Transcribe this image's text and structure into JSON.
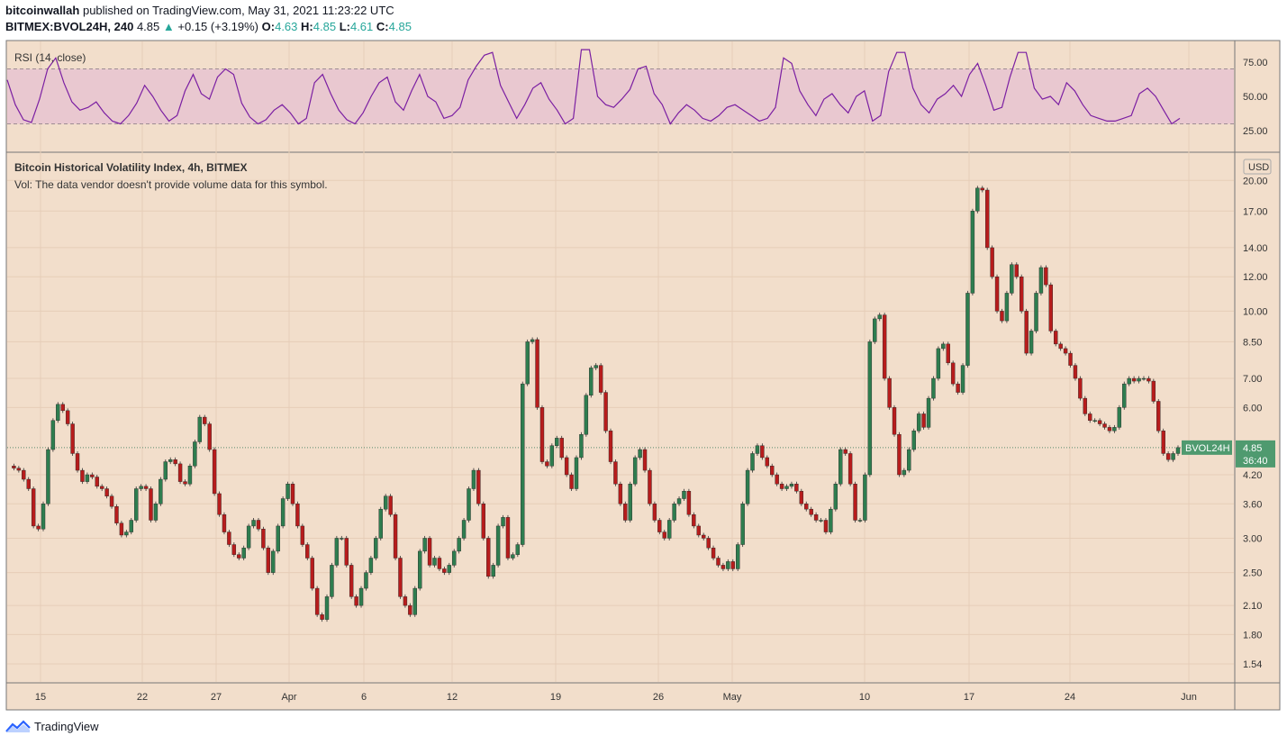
{
  "header": {
    "publisher": "bitcoinwallah",
    "published_text": "published on TradingView.com, May 31, 2021 11:23:22 UTC",
    "symbol": "BITMEX:BVOL24H, 240",
    "last": "4.85",
    "change_arrow": "▲",
    "change": "+0.15 (+3.19%)",
    "o_label": "O:",
    "o_value": "4.63",
    "h_label": "H:",
    "h_value": "4.85",
    "l_label": "L:",
    "l_value": "4.61",
    "c_label": "C:",
    "c_value": "4.85"
  },
  "footer": {
    "brand": "TradingView"
  },
  "colors": {
    "background": "#f2decb",
    "rsi_band": "#e9c8d0",
    "rsi_line": "#7b1fa2",
    "up_candle": "#2e7d4f",
    "down_candle": "#b71c1c",
    "price_label": "#4f9a6f"
  },
  "chart_data": [
    {
      "type": "line",
      "title": "RSI (14, close)",
      "ylim": [
        10,
        90
      ],
      "yticks": [
        "75.00",
        "50.00",
        "25.00"
      ],
      "band": [
        30,
        70
      ],
      "series": [
        {
          "values": [
            62,
            44,
            33,
            31,
            48,
            70,
            78,
            60,
            46,
            40,
            42,
            46,
            38,
            32,
            30,
            36,
            45,
            58,
            50,
            40,
            32,
            36,
            54,
            66,
            52,
            48,
            64,
            70,
            66,
            45,
            35,
            30,
            33,
            40,
            44,
            38,
            30,
            34,
            60,
            66,
            52,
            40,
            33,
            30,
            38,
            50,
            60,
            64,
            46,
            40,
            54,
            66,
            50,
            46,
            34,
            36,
            42,
            62,
            72,
            80,
            82,
            58,
            46,
            34,
            44,
            56,
            60,
            48,
            40,
            30,
            34,
            84,
            84,
            50,
            44,
            42,
            48,
            55,
            70,
            72,
            52,
            44,
            30,
            38,
            44,
            40,
            34,
            32,
            36,
            42,
            44,
            40,
            36,
            32,
            34,
            42,
            78,
            74,
            54,
            44,
            36,
            48,
            52,
            44,
            38,
            50,
            54,
            32,
            36,
            68,
            82,
            82,
            56,
            44,
            38,
            48,
            52,
            58,
            50,
            66,
            74,
            58,
            40,
            42,
            64,
            82,
            82,
            56,
            48,
            50,
            44,
            60,
            54,
            44,
            36,
            34,
            32,
            32,
            34,
            36,
            52,
            56,
            50,
            40,
            30,
            34
          ]
        }
      ]
    },
    {
      "type": "candlestick",
      "title": "Bitcoin Historical Volatility Index, 4h, BITMEX",
      "subtitle": "Vol: The data vendor doesn't provide volume data for this symbol.",
      "currency": "USD",
      "y_scale": "log",
      "ylim": [
        1.4,
        23
      ],
      "yticks": [
        "20.00",
        "17.00",
        "14.00",
        "12.00",
        "10.00",
        "8.50",
        "7.00",
        "6.00",
        "4.20",
        "3.60",
        "3.00",
        "2.50",
        "2.10",
        "1.80",
        "1.54"
      ],
      "x_ticks": [
        "15",
        "22",
        "27",
        "Apr",
        "6",
        "12",
        "19",
        "26",
        "May",
        "10",
        "17",
        "24",
        "Jun"
      ],
      "last_label": "BVOL24H",
      "last_value": "4.85",
      "countdown": "36:40",
      "series": [
        {
          "name": "BVOL24H",
          "values": [
            4.4,
            4.35,
            4.3,
            4.1,
            3.9,
            3.2,
            3.15,
            3.6,
            4.8,
            5.6,
            6.1,
            5.9,
            5.5,
            4.7,
            4.3,
            4.05,
            4.2,
            4.15,
            3.95,
            3.9,
            3.75,
            3.55,
            3.25,
            3.05,
            3.1,
            3.3,
            3.9,
            3.95,
            3.9,
            3.3,
            3.6,
            4.1,
            4.5,
            4.55,
            4.45,
            4.05,
            4.0,
            4.4,
            5.0,
            5.7,
            5.5,
            4.8,
            3.8,
            3.4,
            3.1,
            2.9,
            2.75,
            2.7,
            2.85,
            3.2,
            3.3,
            3.15,
            2.85,
            2.5,
            2.8,
            3.2,
            3.7,
            4.0,
            3.6,
            3.2,
            2.9,
            2.7,
            2.3,
            2.0,
            1.95,
            2.2,
            2.6,
            3.0,
            3.0,
            2.6,
            2.2,
            2.1,
            2.3,
            2.5,
            2.7,
            3.0,
            3.5,
            3.75,
            3.4,
            2.7,
            2.2,
            2.1,
            2.0,
            2.3,
            2.8,
            3.0,
            2.6,
            2.7,
            2.55,
            2.5,
            2.6,
            2.8,
            3.0,
            3.3,
            3.9,
            4.3,
            3.6,
            3.0,
            2.45,
            2.6,
            3.2,
            3.35,
            2.7,
            2.75,
            2.9,
            6.8,
            8.5,
            8.6,
            6.0,
            4.5,
            4.4,
            4.9,
            5.1,
            4.6,
            4.2,
            3.9,
            4.6,
            5.2,
            6.4,
            7.4,
            7.5,
            6.5,
            5.3,
            4.5,
            4.0,
            3.6,
            3.3,
            4.0,
            4.6,
            4.8,
            4.3,
            3.6,
            3.3,
            3.1,
            3.0,
            3.3,
            3.6,
            3.7,
            3.85,
            3.4,
            3.2,
            3.05,
            3.0,
            2.85,
            2.7,
            2.6,
            2.55,
            2.65,
            2.55,
            2.9,
            3.6,
            4.3,
            4.7,
            4.9,
            4.6,
            4.4,
            4.2,
            4.0,
            3.9,
            3.95,
            4.0,
            3.85,
            3.6,
            3.5,
            3.4,
            3.3,
            3.3,
            3.1,
            3.5,
            4.0,
            4.8,
            4.7,
            4.0,
            3.3,
            3.3,
            4.2,
            8.5,
            9.6,
            9.8,
            7.0,
            6.0,
            5.2,
            4.2,
            4.3,
            4.8,
            5.3,
            5.8,
            5.4,
            6.3,
            7.0,
            8.2,
            8.4,
            7.6,
            6.8,
            6.5,
            7.5,
            11.0,
            17.0,
            19.2,
            19.0,
            14.0,
            12.0,
            10.0,
            9.5,
            11.0,
            12.8,
            12.0,
            10.0,
            8.0,
            9.0,
            11.0,
            12.6,
            11.5,
            9.0,
            8.4,
            8.2,
            8.0,
            7.5,
            7.0,
            6.3,
            5.8,
            5.6,
            5.6,
            5.5,
            5.4,
            5.3,
            5.4,
            6.0,
            6.8,
            7.0,
            6.9,
            7.0,
            7.0,
            6.9,
            6.2,
            5.3,
            4.7,
            4.55,
            4.7,
            4.85
          ]
        }
      ]
    }
  ]
}
